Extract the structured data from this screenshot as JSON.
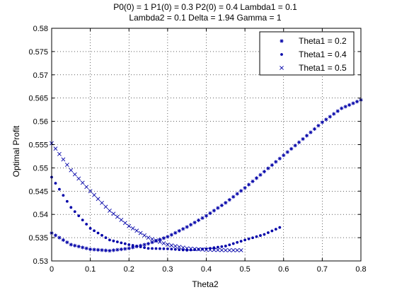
{
  "chart_data": {
    "type": "scatter",
    "title_lines": [
      "P0(0) = 1 P1(0) = 0.3 P2(0) = 0.4 Lambda1 = 0.1",
      "Lambda2 = 0.1 Delta = 1.94 Gamma = 1"
    ],
    "xlabel": "Theta2",
    "ylabel": "Optimal Profit",
    "xlim": [
      0,
      0.8
    ],
    "ylim": [
      0.53,
      0.58
    ],
    "x_ticks": [
      "0",
      "0.1",
      "0.2",
      "0.3",
      "0.4",
      "0.5",
      "0.6",
      "0.7",
      "0.8"
    ],
    "y_ticks": [
      "0.53",
      "0.535",
      "0.54",
      "0.545",
      "0.55",
      "0.555",
      "0.56",
      "0.565",
      "0.57",
      "0.575",
      "0.58"
    ],
    "grid": true,
    "legend_position": "top-right",
    "series_color": "#0000a8",
    "series": [
      {
        "name": "Theta1 = 0.2",
        "marker": "asterisk",
        "x": [
          0,
          0.05,
          0.1,
          0.15,
          0.2,
          0.25,
          0.3,
          0.35,
          0.4,
          0.45,
          0.5,
          0.55,
          0.6,
          0.65,
          0.7,
          0.75,
          0.8
        ],
        "y": [
          0.536,
          0.5335,
          0.5325,
          0.5322,
          0.5327,
          0.5337,
          0.5352,
          0.5373,
          0.5397,
          0.5425,
          0.5457,
          0.5492,
          0.5527,
          0.5562,
          0.5598,
          0.5628,
          0.5646
        ]
      },
      {
        "name": "Theta1 = 0.4",
        "marker": "dot",
        "x": [
          0,
          0.05,
          0.1,
          0.15,
          0.2,
          0.25,
          0.3,
          0.35,
          0.4,
          0.45,
          0.5,
          0.55,
          0.59
        ],
        "y": [
          0.548,
          0.5415,
          0.537,
          0.5345,
          0.5335,
          0.5327,
          0.5326,
          0.5323,
          0.5326,
          0.5332,
          0.5345,
          0.5357,
          0.5372
        ]
      },
      {
        "name": "Theta1 = 0.5",
        "marker": "x",
        "x": [
          0,
          0.05,
          0.1,
          0.15,
          0.2,
          0.25,
          0.3,
          0.35,
          0.4,
          0.45,
          0.49
        ],
        "y": [
          0.5553,
          0.5495,
          0.545,
          0.5408,
          0.5375,
          0.535,
          0.5335,
          0.5327,
          0.5324,
          0.5323,
          0.5323
        ]
      }
    ]
  }
}
